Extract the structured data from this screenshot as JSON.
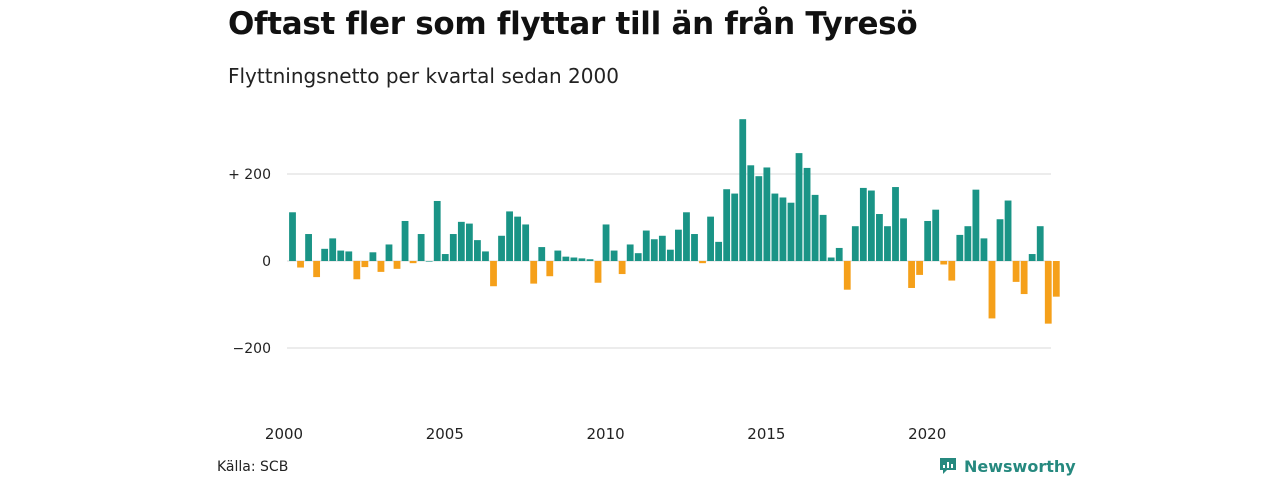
{
  "header": {
    "title": "Oftast fler som flyttar till än från Tyresö",
    "subtitle": "Flyttningsnetto per kvartal sedan 2000"
  },
  "footer": {
    "source": "Källa: SCB",
    "brand": "Newsworthy"
  },
  "colors": {
    "positive": "#1a9486",
    "negative": "#f5a01a",
    "grid": "#d9d9d9",
    "brand": "#26897f"
  },
  "icons": {
    "brand": "bar-chart-speech-bubble-icon"
  },
  "chart_data": {
    "type": "bar",
    "title": "Oftast fler som flyttar till än från Tyresö",
    "subtitle": "Flyttningsnetto per kvartal sedan 2000",
    "xlabel": "",
    "ylabel": "",
    "x_tick_labels": [
      "2000",
      "2005",
      "2010",
      "2015",
      "2020"
    ],
    "y_ticks": [
      {
        "value": 200,
        "label": "+ 200"
      },
      {
        "value": 0,
        "label": "0"
      },
      {
        "value": -200,
        "label": "−200"
      }
    ],
    "ylim": [
      -320,
      330
    ],
    "grid": true,
    "start_year": 2000,
    "quarters_per_year": 4,
    "values": [
      112,
      -15,
      62,
      -37,
      28,
      52,
      24,
      22,
      -42,
      -14,
      20,
      -25,
      38,
      -18,
      92,
      -5,
      62,
      0,
      138,
      16,
      62,
      90,
      86,
      48,
      22,
      -58,
      58,
      114,
      102,
      84,
      -52,
      32,
      -35,
      24,
      10,
      8,
      6,
      4,
      -50,
      84,
      24,
      -30,
      38,
      18,
      70,
      50,
      58,
      26,
      72,
      112,
      62,
      -5,
      102,
      44,
      165,
      155,
      326,
      220,
      195,
      215,
      155,
      146,
      134,
      248,
      214,
      152,
      106,
      8,
      30,
      -66,
      80,
      168,
      162,
      108,
      80,
      170,
      98,
      -62,
      -32,
      92,
      118,
      -8,
      -45,
      60,
      80,
      164,
      52,
      -132,
      96,
      139,
      -48,
      -76,
      16,
      80,
      -144,
      -82
    ]
  }
}
